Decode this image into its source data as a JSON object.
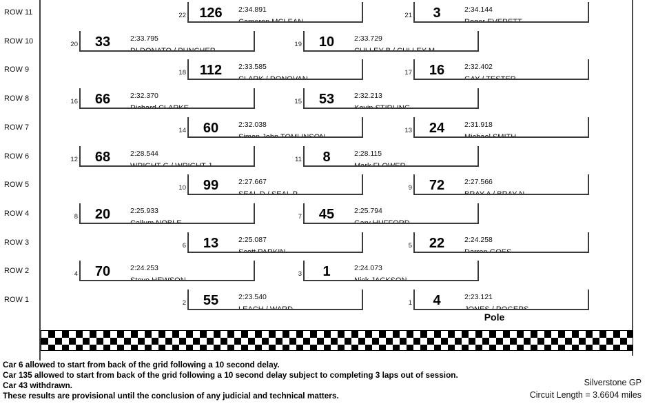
{
  "grid": {
    "pole_label": "Pole",
    "rows": [
      {
        "label": "ROW 11",
        "slots": [
          {
            "pos": "22",
            "car": "126",
            "time": "2:34.891",
            "name": "Cameron MCLEAN"
          },
          {
            "pos": "21",
            "car": "3",
            "time": "2:34.144",
            "name": "Roger EVERETT"
          }
        ]
      },
      {
        "label": "ROW 10",
        "slots": [
          {
            "pos": "20",
            "car": "33",
            "time": "2:33.795",
            "name": "DI DONATO / PUNCHER"
          },
          {
            "pos": "19",
            "car": "10",
            "time": "2:33.729",
            "name": "CULLEY B / CULLEY M"
          }
        ]
      },
      {
        "label": "ROW 9",
        "slots": [
          {
            "pos": "18",
            "car": "112",
            "time": "2:33.585",
            "name": "CLARK / DONOVAN"
          },
          {
            "pos": "17",
            "car": "16",
            "time": "2:32.402",
            "name": "GAY / TESTER"
          }
        ]
      },
      {
        "label": "ROW 8",
        "slots": [
          {
            "pos": "16",
            "car": "66",
            "time": "2:32.370",
            "name": "Richard CLARKE"
          },
          {
            "pos": "15",
            "car": "53",
            "time": "2:32.213",
            "name": "Kevin STIRLING"
          }
        ]
      },
      {
        "label": "ROW 7",
        "slots": [
          {
            "pos": "14",
            "car": "60",
            "time": "2:32.038",
            "name": "Simon John TOMLINSON"
          },
          {
            "pos": "13",
            "car": "24",
            "time": "2:31.918",
            "name": "Michael SMITH"
          }
        ]
      },
      {
        "label": "ROW 6",
        "slots": [
          {
            "pos": "12",
            "car": "68",
            "time": "2:28.544",
            "name": "WRIGHT G / WRIGHT J"
          },
          {
            "pos": "11",
            "car": "8",
            "time": "2:28.115",
            "name": "Mark FLOWER"
          }
        ]
      },
      {
        "label": "ROW 5",
        "slots": [
          {
            "pos": "10",
            "car": "99",
            "time": "2:27.667",
            "name": "SEAL D / SEAL P"
          },
          {
            "pos": "9",
            "car": "72",
            "time": "2:27.566",
            "name": "BRAY A / BRAY N"
          }
        ]
      },
      {
        "label": "ROW 4",
        "slots": [
          {
            "pos": "8",
            "car": "20",
            "time": "2:25.933",
            "name": "Callum NOBLE"
          },
          {
            "pos": "7",
            "car": "45",
            "time": "2:25.794",
            "name": "Gary HUFFORD"
          }
        ]
      },
      {
        "label": "ROW 3",
        "slots": [
          {
            "pos": "6",
            "car": "13",
            "time": "2:25.087",
            "name": "Scott PARKIN"
          },
          {
            "pos": "5",
            "car": "22",
            "time": "2:24.258",
            "name": "Darren GOES"
          }
        ]
      },
      {
        "label": "ROW 2",
        "slots": [
          {
            "pos": "4",
            "car": "70",
            "time": "2:24.253",
            "name": "Steve HEWSON"
          },
          {
            "pos": "3",
            "car": "1",
            "time": "2:24.073",
            "name": "Nick JACKSON"
          }
        ]
      },
      {
        "label": "ROW 1",
        "slots": [
          {
            "pos": "2",
            "car": "55",
            "time": "2:23.540",
            "name": "LEACH / WARD"
          },
          {
            "pos": "1",
            "car": "4",
            "time": "2:23.121",
            "name": "JONES / ROGERS"
          }
        ]
      }
    ]
  },
  "notes": [
    "Car 6 allowed to start from back of the grid following a 10 second delay.",
    "Car 135 allowed to start from back of the grid following a 10 second delay subject to completing 3 laps out of session.",
    "Car 43 withdrawn.",
    "These results are provisional until the conclusion of any judicial and technical matters."
  ],
  "footer": {
    "circuit": "Silverstone GP",
    "length": "Circuit Length = 3.6604 miles"
  },
  "colors": {
    "grid_line": "#3a3a3a",
    "text": "#000000",
    "checker_dark": "#000000",
    "checker_light": "#ffffff"
  }
}
